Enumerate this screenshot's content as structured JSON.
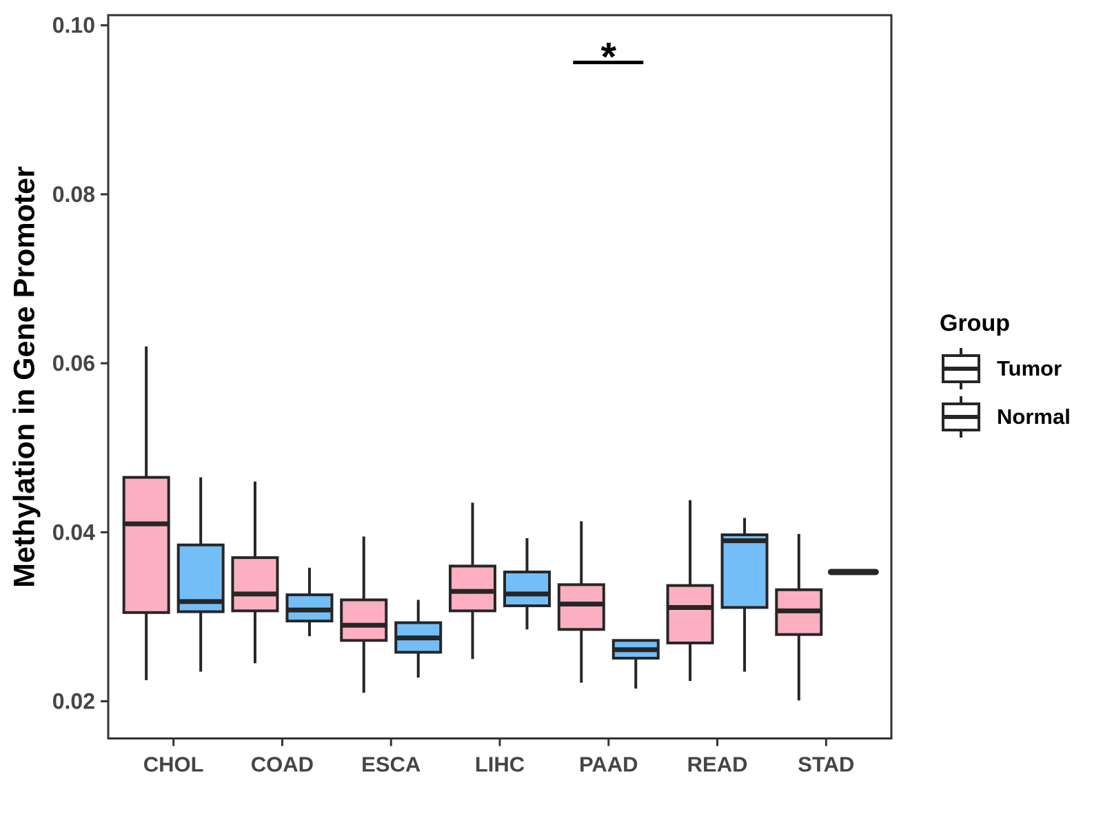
{
  "figure": {
    "background": "#ffffff"
  },
  "axes": {
    "y": {
      "title": "Methylation in Gene Promoter",
      "tick_labels": [
        "0.02",
        "0.04",
        "0.06",
        "0.08",
        "0.10"
      ],
      "tick_values": [
        0.02,
        0.04,
        0.06,
        0.08,
        0.1
      ]
    },
    "x": {
      "categories": [
        "CHOL",
        "COAD",
        "ESCA",
        "LIHC",
        "PAAD",
        "READ",
        "STAD"
      ]
    }
  },
  "legend": {
    "title": "Group",
    "items": [
      {
        "label": "Tumor",
        "color": "#FBAFC1"
      },
      {
        "label": "Normal",
        "color": "#74BEF8"
      }
    ]
  },
  "chart_data": {
    "type": "boxplot",
    "title": "",
    "xlabel": "",
    "ylabel": "Methylation in Gene Promoter",
    "ylim": [
      0.0156,
      0.1012
    ],
    "grid": false,
    "legend_position": "right",
    "categories": [
      "CHOL",
      "COAD",
      "ESCA",
      "LIHC",
      "PAAD",
      "READ",
      "STAD"
    ],
    "series": [
      {
        "name": "Tumor",
        "color": "#FBAFC1",
        "boxes": [
          {
            "category": "CHOL",
            "min": 0.0225,
            "q1": 0.0305,
            "median": 0.041,
            "q3": 0.0465,
            "max": 0.062
          },
          {
            "category": "COAD",
            "min": 0.0245,
            "q1": 0.0307,
            "median": 0.0327,
            "q3": 0.037,
            "max": 0.046
          },
          {
            "category": "ESCA",
            "min": 0.021,
            "q1": 0.0272,
            "median": 0.029,
            "q3": 0.032,
            "max": 0.0395
          },
          {
            "category": "LIHC",
            "min": 0.025,
            "q1": 0.0307,
            "median": 0.033,
            "q3": 0.036,
            "max": 0.0435
          },
          {
            "category": "PAAD",
            "min": 0.0222,
            "q1": 0.0285,
            "median": 0.0315,
            "q3": 0.0338,
            "max": 0.0413
          },
          {
            "category": "READ",
            "min": 0.0224,
            "q1": 0.0269,
            "median": 0.0311,
            "q3": 0.0337,
            "max": 0.0438
          },
          {
            "category": "STAD",
            "min": 0.0201,
            "q1": 0.0279,
            "median": 0.0307,
            "q3": 0.0332,
            "max": 0.0398
          }
        ]
      },
      {
        "name": "Normal",
        "color": "#74BEF8",
        "boxes": [
          {
            "category": "CHOL",
            "min": 0.0235,
            "q1": 0.0306,
            "median": 0.0318,
            "q3": 0.0385,
            "max": 0.0465
          },
          {
            "category": "COAD",
            "min": 0.0277,
            "q1": 0.0295,
            "median": 0.0308,
            "q3": 0.0326,
            "max": 0.0358
          },
          {
            "category": "ESCA",
            "min": 0.0228,
            "q1": 0.0258,
            "median": 0.0275,
            "q3": 0.0293,
            "max": 0.032
          },
          {
            "category": "LIHC",
            "min": 0.0285,
            "q1": 0.0313,
            "median": 0.0327,
            "q3": 0.0353,
            "max": 0.0393
          },
          {
            "category": "PAAD",
            "min": 0.0215,
            "q1": 0.0251,
            "median": 0.0261,
            "q3": 0.0272,
            "max": 0.0272
          },
          {
            "category": "READ",
            "min": 0.0235,
            "q1": 0.0311,
            "median": 0.039,
            "q3": 0.0397,
            "max": 0.0417
          },
          {
            "category": "STAD",
            "min": 0.0353,
            "q1": 0.0353,
            "median": 0.0353,
            "q3": 0.0353,
            "max": 0.0353
          }
        ]
      }
    ],
    "annotations": [
      {
        "type": "significance-bracket",
        "category": "PAAD",
        "label": "*",
        "bar_y": 0.0956,
        "spans": [
          "Tumor",
          "Normal"
        ]
      }
    ]
  },
  "style": {
    "box_border": "#262626",
    "axis_line": "#333333",
    "tick_text": "#454545",
    "axis_title_text": "#000000",
    "annotation_color": "#000000"
  }
}
